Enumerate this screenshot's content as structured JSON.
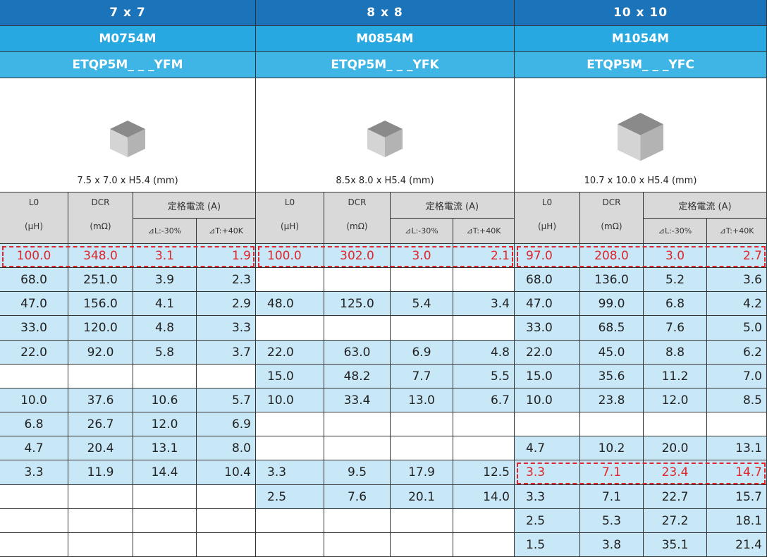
{
  "columns": {
    "l0": "L0",
    "l0_unit": "(μH)",
    "dcr": "DCR",
    "dcr_unit": "(mΩ)",
    "current": "定格電流 (A)",
    "dl": "⊿L:-30%",
    "dt": "⊿T:+40K"
  },
  "groups": [
    {
      "size": "7 x 7",
      "model": "M0754M",
      "part": "ETQP5M_ _ _YFM",
      "dimensions": "7.5 x 7.0 x H5.4 (mm)",
      "highlight": [
        0
      ],
      "rows": [
        [
          "100.0",
          "348.0",
          "3.1",
          "1.9"
        ],
        [
          "68.0",
          "251.0",
          "3.9",
          "2.3"
        ],
        [
          "47.0",
          "156.0",
          "4.1",
          "2.9"
        ],
        [
          "33.0",
          "120.0",
          "4.8",
          "3.3"
        ],
        [
          "22.0",
          "92.0",
          "5.8",
          "3.7"
        ],
        null,
        [
          "10.0",
          "37.6",
          "10.6",
          "5.7"
        ],
        [
          "6.8",
          "26.7",
          "12.0",
          "6.9"
        ],
        [
          "4.7",
          "20.4",
          "13.1",
          "8.0"
        ],
        [
          "3.3",
          "11.9",
          "14.4",
          "10.4"
        ],
        null,
        null,
        null
      ]
    },
    {
      "size": "8 x 8",
      "model": "M0854M",
      "part": "ETQP5M_ _ _YFK",
      "dimensions": "8.5x 8.0 x H5.4 (mm)",
      "highlight": [
        0
      ],
      "rows": [
        [
          "100.0",
          "302.0",
          "3.0",
          "2.1"
        ],
        null,
        [
          "48.0",
          "125.0",
          "5.4",
          "3.4"
        ],
        null,
        [
          "22.0",
          "63.0",
          "6.9",
          "4.8"
        ],
        [
          "15.0",
          "48.2",
          "7.7",
          "5.5"
        ],
        [
          "10.0",
          "33.4",
          "13.0",
          "6.7"
        ],
        null,
        null,
        [
          "3.3",
          "9.5",
          "17.9",
          "12.5"
        ],
        [
          "2.5",
          "7.6",
          "20.1",
          "14.0"
        ],
        null,
        null
      ]
    },
    {
      "size": "10 x 10",
      "model": "M1054M",
      "part": "ETQP5M_ _ _YFC",
      "dimensions": "10.7 x 10.0 x H5.4 (mm)",
      "highlight": [
        0,
        9
      ],
      "rows": [
        [
          "97.0",
          "208.0",
          "3.0",
          "2.7"
        ],
        [
          "68.0",
          "136.0",
          "5.2",
          "3.6"
        ],
        [
          "47.0",
          "99.0",
          "6.8",
          "4.2"
        ],
        [
          "33.0",
          "68.5",
          "7.6",
          "5.0"
        ],
        [
          "22.0",
          "45.0",
          "8.8",
          "6.2"
        ],
        [
          "15.0",
          "35.6",
          "11.2",
          "7.0"
        ],
        [
          "10.0",
          "23.8",
          "12.0",
          "8.5"
        ],
        null,
        [
          "4.7",
          "10.2",
          "20.0",
          "13.1"
        ],
        [
          "3.3",
          "7.1",
          "23.4",
          "14.7"
        ],
        [
          "3.3",
          "7.1",
          "22.7",
          "15.7"
        ],
        [
          "2.5",
          "5.3",
          "27.2",
          "18.1"
        ],
        [
          "1.5",
          "3.8",
          "35.1",
          "21.4"
        ]
      ]
    }
  ]
}
